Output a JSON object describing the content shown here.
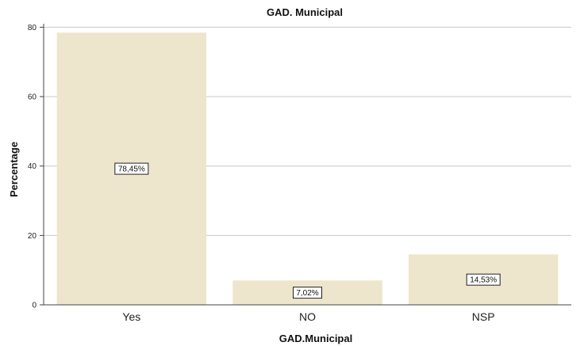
{
  "chart_data": {
    "type": "bar",
    "title": "GAD. Municipal",
    "xlabel": "GAD.Municipal",
    "ylabel": "Percentage",
    "categories": [
      "Yes",
      "NO",
      "NSP"
    ],
    "values": [
      78.45,
      7.02,
      14.53
    ],
    "data_labels": [
      "78,45%",
      "7,02%",
      "14,53%"
    ],
    "y_ticks": [
      0,
      20,
      40,
      60,
      80
    ],
    "ylim": [
      0,
      81
    ],
    "grid": true,
    "bar_color": "#ede5cc",
    "grid_color": "#c8c8c8",
    "axis_color": "#444444"
  }
}
